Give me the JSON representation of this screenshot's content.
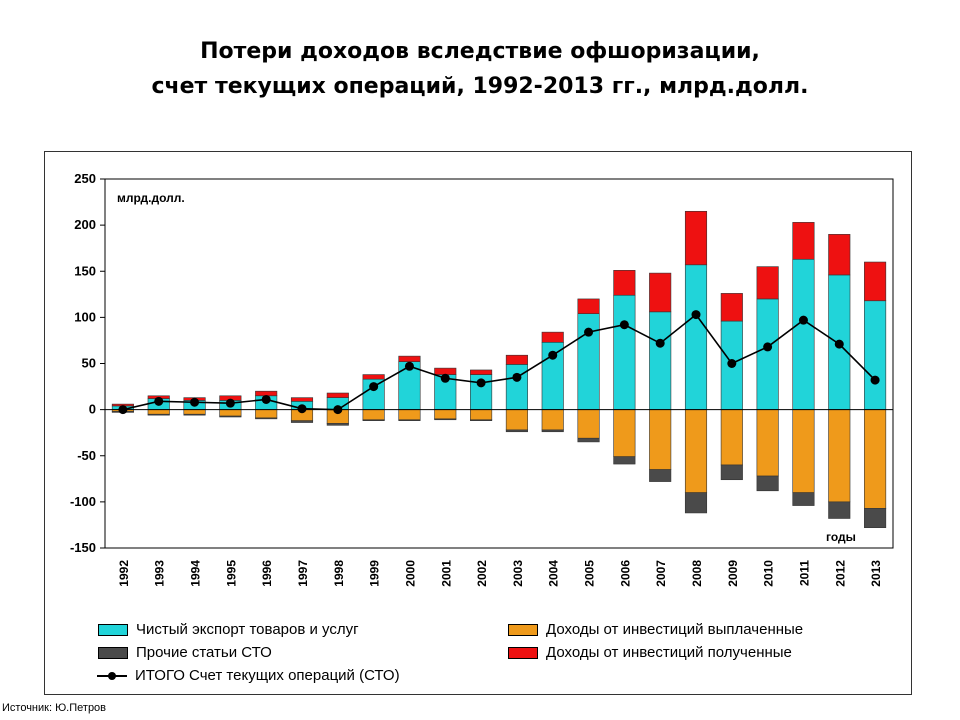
{
  "title": {
    "line1": "Потери доходов вследствие офшоризации,",
    "line2": "счет текущих операций, 1992-2013 гг., млрд.долл."
  },
  "source": "Источник: Ю.Петров",
  "colors": {
    "net_export": "#21d4d9",
    "inv_paid": "#ef9a1b",
    "other": "#4a4a4a",
    "inv_received": "#ee1111",
    "total": "#000000"
  },
  "chart_data": {
    "type": "bar",
    "stacked": true,
    "unit_label": "млрд.долл.",
    "xlabel": "годы",
    "ylim": [
      -150,
      250
    ],
    "yticks": [
      -150,
      -100,
      -50,
      0,
      50,
      100,
      150,
      200,
      250
    ],
    "categories": [
      "1992",
      "1993",
      "1994",
      "1995",
      "1996",
      "1997",
      "1998",
      "1999",
      "2000",
      "2001",
      "2002",
      "2003",
      "2004",
      "2005",
      "2006",
      "2007",
      "2008",
      "2009",
      "2010",
      "2011",
      "2012",
      "2013"
    ],
    "series": [
      {
        "name": "Чистый экспорт товаров и услуг",
        "key": "net_export",
        "values": [
          4,
          12,
          10,
          10,
          15,
          9,
          13,
          33,
          52,
          38,
          38,
          49,
          73,
          104,
          124,
          106,
          157,
          96,
          120,
          163,
          146,
          118
        ]
      },
      {
        "name": "Доходы от инвестиций полученные",
        "key": "inv_received",
        "values": [
          2,
          3,
          3,
          5,
          5,
          4,
          5,
          5,
          6,
          7,
          5,
          10,
          11,
          16,
          27,
          42,
          58,
          30,
          35,
          40,
          44,
          42
        ]
      },
      {
        "name": "Доходы от инвестиций выплаченные",
        "key": "inv_paid",
        "values": [
          -2,
          -5,
          -5,
          -7,
          -9,
          -12,
          -15,
          -11,
          -11,
          -10,
          -11,
          -22,
          -22,
          -31,
          -51,
          -65,
          -90,
          -60,
          -72,
          -90,
          -100,
          -107
        ]
      },
      {
        "name": "Прочие статьи СТО",
        "key": "other",
        "values": [
          -1,
          -1,
          -1,
          -1,
          -1,
          -2,
          -2,
          -1,
          -1,
          -1,
          -1,
          -2,
          -2,
          -4,
          -8,
          -13,
          -22,
          -16,
          -16,
          -14,
          -18,
          -21
        ]
      },
      {
        "name": "ИТОГО Счет текущих операций (СТО)",
        "key": "total",
        "type": "line",
        "values": [
          0,
          9,
          8,
          7,
          11,
          1,
          0,
          25,
          47,
          34,
          29,
          35,
          59,
          84,
          92,
          72,
          103,
          50,
          68,
          97,
          71,
          32
        ]
      }
    ],
    "legend": {
      "left_column": [
        "Чистый экспорт товаров и услуг",
        "Прочие статьи СТО",
        "ИТОГО Счет текущих операций (СТО)"
      ],
      "right_column": [
        "Доходы от инвестиций выплаченные",
        "Доходы от инвестиций полученные"
      ],
      "placement": "bottom"
    },
    "grid": false
  }
}
